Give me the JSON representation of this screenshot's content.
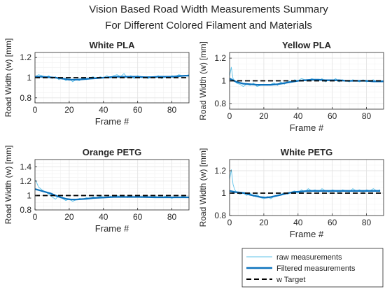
{
  "figure": {
    "title_line1": "Vision Based Road Width Measurements Summary",
    "title_line2": "For Different Colored Filament and Materials"
  },
  "colors": {
    "raw": "#5fc3ea",
    "filtered": "#0c72bd",
    "target": "#000000",
    "grid": "#e4e4e4",
    "minor_grid": "#f1f1f1",
    "axis": "#262626",
    "text": "#262626"
  },
  "legend": {
    "placement": "bottom-right",
    "items": [
      {
        "label": "raw measurements",
        "style": "thin-light-blue-line"
      },
      {
        "label": "Filtered measurements",
        "style": "thick-blue-line"
      },
      {
        "label": "w Target",
        "style": "black-dashed-line"
      }
    ]
  },
  "chart_data": [
    {
      "type": "line",
      "title": "White PLA",
      "xlabel": "Frame #",
      "ylabel": "Road Width (w) [mm]",
      "xlim": [
        0,
        90
      ],
      "ylim": [
        0.75,
        1.25
      ],
      "xticks": [
        0,
        20,
        40,
        60,
        80
      ],
      "yticks": [
        0.8,
        1,
        1.2
      ],
      "ytick_labels": [
        "0.8",
        "1",
        "1.2"
      ],
      "grid": true,
      "target": 1.0,
      "series": [
        {
          "name": "raw measurements",
          "x": [
            0,
            2,
            4,
            6,
            8,
            10,
            12,
            14,
            16,
            18,
            20,
            22,
            24,
            26,
            28,
            30,
            32,
            34,
            36,
            38,
            40,
            42,
            44,
            46,
            48,
            50,
            52,
            54,
            56,
            58,
            60,
            62,
            64,
            66,
            68,
            70,
            72,
            74,
            76,
            78,
            80,
            82,
            84,
            86,
            88,
            90
          ],
          "y": [
            1.01,
            1.03,
            1.02,
            1.0,
            1.02,
            0.99,
            1.01,
            0.98,
            1.0,
            0.97,
            0.99,
            0.96,
            0.98,
            0.97,
            1.0,
            0.98,
            1.0,
            1.01,
            0.99,
            1.01,
            1.0,
            1.02,
            1.0,
            1.02,
            1.03,
            1.01,
            1.04,
            1.0,
            1.02,
            0.99,
            1.02,
            1.0,
            1.01,
            0.99,
            1.01,
            1.0,
            1.02,
            0.99,
            1.01,
            1.0,
            1.02,
            1.01,
            1.03,
            1.02,
            1.02,
            1.03
          ]
        },
        {
          "name": "Filtered measurements",
          "x": [
            0,
            4,
            8,
            12,
            16,
            20,
            24,
            28,
            32,
            36,
            40,
            44,
            48,
            52,
            56,
            60,
            64,
            68,
            72,
            76,
            80,
            84,
            88,
            90
          ],
          "y": [
            1.01,
            1.01,
            1.005,
            1.0,
            0.99,
            0.98,
            0.98,
            0.985,
            0.99,
            0.995,
            1.0,
            1.005,
            1.01,
            1.01,
            1.01,
            1.01,
            1.005,
            1.005,
            1.01,
            1.01,
            1.01,
            1.015,
            1.02,
            1.02
          ]
        }
      ]
    },
    {
      "type": "line",
      "title": "Yellow PLA",
      "xlabel": "Frame #",
      "ylabel": "Road Width (w) [mm]",
      "xlim": [
        0,
        90
      ],
      "ylim": [
        0.75,
        1.25
      ],
      "xticks": [
        0,
        20,
        40,
        60,
        80
      ],
      "yticks": [
        0.8,
        1,
        1.2
      ],
      "ytick_labels": [
        "0.8",
        "1",
        "1.2"
      ],
      "grid": true,
      "target": 1.0,
      "series": [
        {
          "name": "raw measurements",
          "x": [
            0,
            1,
            2,
            4,
            6,
            8,
            10,
            12,
            14,
            16,
            18,
            20,
            22,
            24,
            26,
            28,
            30,
            32,
            34,
            36,
            38,
            40,
            42,
            44,
            46,
            48,
            50,
            52,
            54,
            56,
            58,
            60,
            62,
            64,
            66,
            68,
            70,
            72,
            74,
            76,
            78,
            80,
            82,
            84,
            86,
            88,
            90
          ],
          "y": [
            1.04,
            1.12,
            1.02,
            0.98,
            0.97,
            0.95,
            0.97,
            0.96,
            0.98,
            0.95,
            0.96,
            0.97,
            0.96,
            0.97,
            0.98,
            0.96,
            0.99,
            0.97,
            1.0,
            0.99,
            1.01,
            1.0,
            1.02,
            1.01,
            1.0,
            1.02,
            1.01,
            1.0,
            1.02,
            0.99,
            1.01,
            1.0,
            1.02,
            0.99,
            1.01,
            1.0,
            0.99,
            1.01,
            1.0,
            0.99,
            1.01,
            0.99,
            1.0,
            1.01,
            0.99,
            1.0,
            1.0
          ]
        },
        {
          "name": "Filtered measurements",
          "x": [
            0,
            4,
            8,
            12,
            16,
            20,
            24,
            28,
            32,
            36,
            40,
            44,
            48,
            52,
            56,
            60,
            64,
            68,
            72,
            76,
            80,
            84,
            88,
            90
          ],
          "y": [
            1.02,
            0.99,
            0.975,
            0.97,
            0.965,
            0.965,
            0.965,
            0.97,
            0.98,
            0.99,
            1.0,
            1.005,
            1.01,
            1.01,
            1.005,
            1.005,
            1.005,
            1.0,
            1.0,
            1.0,
            1.0,
            0.995,
            0.995,
            0.995
          ]
        }
      ]
    },
    {
      "type": "line",
      "title": "Orange PETG",
      "xlabel": "Frame #",
      "ylabel": "Road Width (w) [mm]",
      "xlim": [
        0,
        90
      ],
      "ylim": [
        0.8,
        1.5
      ],
      "xticks": [
        0,
        20,
        40,
        60,
        80
      ],
      "yticks": [
        0.8,
        1,
        1.2,
        1.4
      ],
      "ytick_labels": [
        "0.8",
        "1",
        "1.2",
        "1.4"
      ],
      "grid": true,
      "target": 1.0,
      "series": [
        {
          "name": "raw measurements",
          "x": [
            0,
            1,
            2,
            3,
            4,
            6,
            8,
            10,
            12,
            14,
            16,
            18,
            20,
            22,
            24,
            26,
            28,
            30,
            32,
            34,
            36,
            38,
            40,
            42,
            44,
            46,
            48,
            50,
            52,
            54,
            56,
            58,
            60,
            62,
            64,
            66,
            68,
            70,
            72,
            74,
            76,
            78,
            80,
            82,
            84,
            86,
            88,
            90
          ],
          "y": [
            1.22,
            1.18,
            1.12,
            1.1,
            1.08,
            1.05,
            1.02,
            0.98,
            0.95,
            1.0,
            0.96,
            0.93,
            0.95,
            0.92,
            0.94,
            0.96,
            0.95,
            0.97,
            0.96,
            0.98,
            0.97,
            0.99,
            0.98,
            0.97,
            0.99,
            0.98,
            1.0,
            0.98,
            0.99,
            0.97,
            0.99,
            0.98,
            0.99,
            0.97,
            0.99,
            0.98,
            0.97,
            0.99,
            0.98,
            0.97,
            0.99,
            0.98,
            0.96,
            0.98,
            0.97,
            0.99,
            0.98,
            0.98
          ]
        },
        {
          "name": "Filtered measurements",
          "x": [
            0,
            3,
            6,
            9,
            12,
            15,
            18,
            21,
            24,
            27,
            30,
            34,
            38,
            42,
            46,
            50,
            54,
            58,
            62,
            66,
            70,
            74,
            78,
            82,
            86,
            90
          ],
          "y": [
            1.09,
            1.07,
            1.05,
            1.03,
            1.0,
            0.975,
            0.955,
            0.945,
            0.945,
            0.95,
            0.955,
            0.965,
            0.97,
            0.975,
            0.98,
            0.98,
            0.98,
            0.98,
            0.98,
            0.978,
            0.975,
            0.975,
            0.975,
            0.975,
            0.975,
            0.975
          ]
        }
      ]
    },
    {
      "type": "line",
      "title": "White PETG",
      "xlabel": "Frame #",
      "ylabel": "Road Width (w) [mm]",
      "xlim": [
        0,
        90
      ],
      "ylim": [
        0.8,
        1.3
      ],
      "xticks": [
        0,
        20,
        40,
        60,
        80
      ],
      "yticks": [
        0.8,
        1,
        1.2
      ],
      "ytick_labels": [
        "0.8",
        "1",
        "1.2"
      ],
      "grid": true,
      "target": 1.0,
      "series": [
        {
          "name": "raw measurements",
          "x": [
            0,
            1,
            2,
            3,
            4,
            6,
            8,
            10,
            12,
            14,
            16,
            18,
            20,
            22,
            24,
            26,
            28,
            30,
            32,
            34,
            36,
            38,
            40,
            42,
            44,
            46,
            48,
            50,
            52,
            54,
            56,
            58,
            60,
            62,
            64,
            66,
            68,
            70,
            72,
            74,
            76,
            78,
            80,
            82,
            84,
            86,
            88
          ],
          "y": [
            1.12,
            1.21,
            1.08,
            1.03,
            1.01,
            0.99,
            1.0,
            0.98,
            1.0,
            0.97,
            0.99,
            0.96,
            0.95,
            0.97,
            0.95,
            0.97,
            0.98,
            0.99,
            1.0,
            0.99,
            1.01,
            1.02,
            1.0,
            1.03,
            1.01,
            1.04,
            1.02,
            1.03,
            1.01,
            1.04,
            1.02,
            1.01,
            1.03,
            1.02,
            1.0,
            1.03,
            1.02,
            1.01,
            1.04,
            1.02,
            1.03,
            1.01,
            1.03,
            1.02,
            1.04,
            1.02,
            1.03
          ]
        },
        {
          "name": "Filtered measurements",
          "x": [
            0,
            3,
            6,
            9,
            12,
            15,
            18,
            21,
            24,
            27,
            30,
            34,
            38,
            42,
            46,
            50,
            54,
            58,
            62,
            66,
            70,
            74,
            78,
            82,
            86,
            88
          ],
          "y": [
            1.02,
            1.01,
            1.005,
            1.0,
            0.985,
            0.975,
            0.965,
            0.96,
            0.965,
            0.975,
            0.985,
            1.0,
            1.01,
            1.015,
            1.02,
            1.02,
            1.02,
            1.02,
            1.02,
            1.02,
            1.02,
            1.02,
            1.02,
            1.02,
            1.02,
            1.02
          ]
        }
      ]
    }
  ]
}
